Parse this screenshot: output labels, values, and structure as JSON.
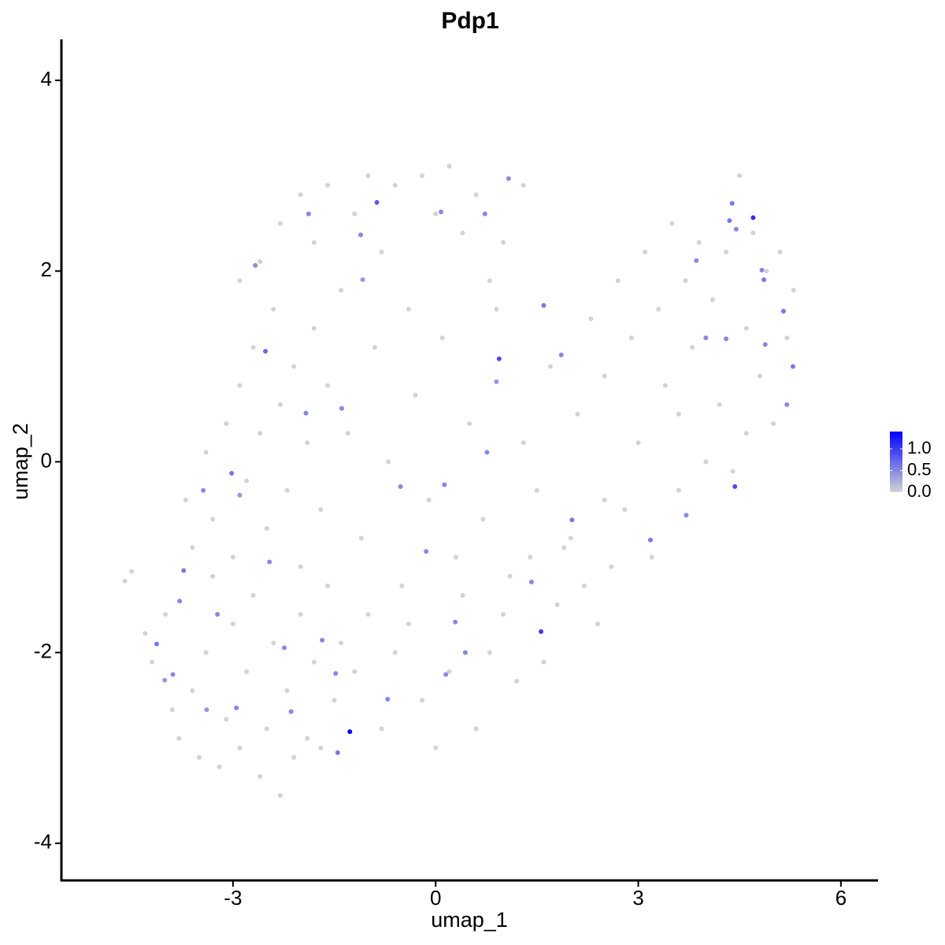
{
  "chart_data": {
    "type": "scatter",
    "title": "Pdp1",
    "xlabel": "umap_1",
    "ylabel": "umap_2",
    "xlim": [
      -5.54,
      6.55
    ],
    "ylim": [
      -4.39,
      4.43
    ],
    "xticks": [
      -3,
      0,
      3,
      6
    ],
    "yticks": [
      -4,
      -2,
      0,
      2,
      4
    ],
    "color_low": "#d3d3d3",
    "color_high": "#0000ff",
    "clim": [
      0,
      1.4
    ],
    "cticks": [
      {
        "value": 0,
        "label": "0.0"
      },
      0.5,
      {
        "value": 1,
        "label": "1.0"
      }
    ],
    "x": [
      -4.6,
      -4.5,
      -4.3,
      -4.2,
      -4.0,
      -3.9,
      -3.8,
      -3.6,
      -3.5,
      -3.4,
      -3.3,
      -3.2,
      -3.1,
      -3.0,
      -2.9,
      -2.8,
      -2.7,
      -2.6,
      -2.5,
      -2.4,
      -2.3,
      -2.2,
      -2.1,
      -2.0,
      -1.9,
      -1.8,
      -1.7,
      -1.6,
      -1.5,
      -1.4,
      -3.7,
      -3.6,
      -3.4,
      -3.3,
      -3.1,
      -3.0,
      -2.9,
      -2.8,
      -2.7,
      -2.6,
      -2.5,
      -2.4,
      -2.3,
      -2.2,
      -2.1,
      -2.0,
      -1.9,
      -1.8,
      -1.7,
      -1.6,
      -2.9,
      -2.6,
      -2.3,
      -2.0,
      -1.8,
      -1.6,
      -1.4,
      -1.2,
      -1.0,
      -0.8,
      -0.6,
      -0.4,
      -0.2,
      0.0,
      0.2,
      0.4,
      0.6,
      0.8,
      1.0,
      1.3,
      -1.3,
      -1.1,
      -0.9,
      -0.7,
      -0.5,
      -0.3,
      -0.1,
      0.1,
      0.3,
      0.5,
      0.7,
      0.9,
      1.1,
      1.3,
      1.5,
      1.7,
      1.9,
      2.1,
      2.3,
      2.5,
      -1.2,
      -1.0,
      -0.8,
      -0.6,
      -0.4,
      -0.2,
      0.0,
      0.2,
      0.4,
      0.6,
      0.8,
      1.0,
      1.2,
      1.4,
      1.6,
      1.8,
      2.0,
      2.2,
      2.4,
      2.6,
      2.8,
      3.0,
      3.2,
      3.4,
      3.6,
      3.8,
      4.0,
      4.2,
      4.4,
      4.6,
      4.8,
      5.0,
      5.2,
      2.7,
      2.9,
      3.1,
      3.3,
      3.5,
      3.7,
      3.9,
      4.1,
      4.3,
      4.5,
      4.7,
      4.9,
      5.1,
      5.3,
      4.6,
      2.5,
      3.6,
      -1.27,
      1.56,
      4.7,
      4.43,
      0.94,
      -0.87,
      -1.45,
      -3.73,
      -4.13,
      -3.02,
      -2.52,
      5.15,
      5.29,
      4.86,
      4.35,
      4.39,
      1.6,
      2.02,
      3.18,
      3.71,
      0.44,
      0.15,
      0.08,
      0.73,
      1.08,
      -1.92,
      -1.68,
      -3.23,
      -2.95,
      -3.89,
      -3.44,
      -2.46,
      -0.52,
      0.13,
      0.76,
      1.86,
      3.86,
      4.3,
      4.45,
      4.83,
      -1.11,
      -1.88,
      -2.67,
      -1.39,
      -1.48,
      -0.71,
      1.42,
      0.29,
      -0.14,
      -2.24,
      -2.14,
      -3.79,
      5.2,
      4.88,
      4.0,
      0.9,
      -2.9,
      -4.01,
      -1.08,
      -3.39
    ],
    "y": [
      -1.25,
      -1.15,
      -1.8,
      -2.1,
      -1.6,
      -2.6,
      -2.9,
      -2.4,
      -3.1,
      -2.0,
      -1.2,
      -3.2,
      -2.7,
      -1.7,
      -3.0,
      -2.2,
      -1.4,
      -3.3,
      -2.8,
      -1.9,
      -3.5,
      -2.4,
      -3.1,
      -1.6,
      -2.9,
      -2.1,
      -3.0,
      -1.3,
      -2.5,
      -1.9,
      -0.4,
      -0.9,
      0.1,
      -0.6,
      0.4,
      -1.0,
      0.8,
      -0.2,
      1.2,
      0.3,
      -0.7,
      1.6,
      0.6,
      -0.3,
      1.0,
      -1.1,
      0.2,
      1.4,
      -0.5,
      0.8,
      1.9,
      2.1,
      2.5,
      2.8,
      2.3,
      2.9,
      1.8,
      2.6,
      3.0,
      2.2,
      2.9,
      1.6,
      3.0,
      2.6,
      3.1,
      2.4,
      2.8,
      1.9,
      2.3,
      2.9,
      0.3,
      -0.8,
      1.2,
      0.0,
      -1.3,
      0.7,
      -0.4,
      1.3,
      -1.0,
      0.4,
      -0.6,
      1.6,
      -1.2,
      0.2,
      -0.3,
      1.0,
      -0.9,
      0.5,
      1.5,
      -0.4,
      -2.2,
      -1.6,
      -2.8,
      -2.0,
      -1.7,
      -2.5,
      -3.0,
      -2.2,
      -1.4,
      -2.8,
      -2.0,
      -1.6,
      -2.3,
      -1.0,
      -2.1,
      -1.5,
      -0.8,
      -1.3,
      -1.7,
      -1.1,
      -0.5,
      0.2,
      -1.0,
      0.8,
      -0.3,
      1.2,
      0.0,
      0.6,
      -0.1,
      0.3,
      0.9,
      0.4,
      1.3,
      1.9,
      1.3,
      2.2,
      1.6,
      2.5,
      1.9,
      2.3,
      1.7,
      2.2,
      3.0,
      2.4,
      2.0,
      2.2,
      1.8,
      1.4,
      0.9,
      0.5,
      -2.83,
      -1.78,
      2.56,
      -0.26,
      1.08,
      2.72,
      -3.05,
      -1.14,
      -1.91,
      -0.12,
      1.16,
      1.58,
      1.0,
      1.91,
      2.53,
      2.71,
      1.64,
      -0.61,
      -0.82,
      -0.56,
      -2.0,
      -2.23,
      2.62,
      2.6,
      2.97,
      0.51,
      -1.87,
      -1.6,
      -2.58,
      -2.23,
      -0.3,
      -1.05,
      -0.26,
      -0.24,
      0.1,
      1.12,
      2.11,
      1.29,
      2.44,
      2.01,
      2.38,
      2.6,
      2.06,
      0.56,
      -2.22,
      -2.49,
      -1.26,
      -1.68,
      -0.94,
      -1.95,
      -2.62,
      -1.46,
      0.6,
      1.23,
      1.3,
      0.84,
      -0.35,
      -2.29,
      1.91,
      -2.6
    ],
    "values": [
      0,
      0,
      0,
      0,
      0,
      0,
      0,
      0,
      0,
      0,
      0,
      0,
      0,
      0,
      0,
      0,
      0,
      0,
      0,
      0,
      0,
      0,
      0,
      0,
      0,
      0,
      0,
      0,
      0,
      0,
      0,
      0,
      0,
      0,
      0,
      0,
      0,
      0,
      0,
      0,
      0,
      0,
      0,
      0,
      0,
      0,
      0,
      0,
      0,
      0,
      0,
      0,
      0,
      0,
      0,
      0,
      0,
      0,
      0,
      0,
      0,
      0,
      0,
      0,
      0,
      0,
      0,
      0,
      0,
      0,
      0,
      0,
      0,
      0,
      0,
      0,
      0,
      0,
      0,
      0,
      0,
      0,
      0,
      0,
      0,
      0,
      0,
      0,
      0,
      0,
      0,
      0,
      0,
      0,
      0,
      0,
      0,
      0,
      0,
      0,
      0,
      0,
      0,
      0,
      0,
      0,
      0,
      0,
      0,
      0,
      0,
      0,
      0,
      0,
      0,
      0,
      0,
      0,
      0,
      0,
      0,
      0,
      0,
      0,
      0,
      0,
      0,
      0,
      0,
      0,
      0,
      0,
      0,
      0,
      0,
      0,
      0,
      0,
      0,
      0,
      1.4,
      1.0,
      1.1,
      0.9,
      0.9,
      0.8,
      0.6,
      0.6,
      0.6,
      0.6,
      0.7,
      0.6,
      0.6,
      0.6,
      0.6,
      0.6,
      0.6,
      0.6,
      0.6,
      0.5,
      0.5,
      0.5,
      0.5,
      0.5,
      0.5,
      0.5,
      0.5,
      0.5,
      0.5,
      0.5,
      0.5,
      0.5,
      0.5,
      0.5,
      0.5,
      0.5,
      0.5,
      0.5,
      0.5,
      0.5,
      0.5,
      0.5,
      0.5,
      0.5,
      0.5,
      0.5,
      0.5,
      0.5,
      0.5,
      0.5,
      0.5,
      0.5,
      0.5,
      0.5,
      0.5,
      0.4,
      0.4,
      0.4,
      0.4,
      0.4
    ]
  }
}
